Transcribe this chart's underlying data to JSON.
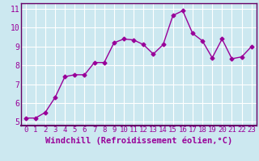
{
  "x": [
    0,
    1,
    2,
    3,
    4,
    5,
    6,
    7,
    8,
    9,
    10,
    11,
    12,
    13,
    14,
    15,
    16,
    17,
    18,
    19,
    20,
    21,
    22,
    23
  ],
  "y": [
    5.2,
    5.2,
    5.5,
    6.3,
    7.4,
    7.5,
    7.5,
    8.15,
    8.15,
    9.2,
    9.4,
    9.35,
    9.1,
    8.6,
    9.1,
    10.65,
    10.9,
    9.7,
    9.3,
    8.4,
    9.4,
    8.35,
    8.45,
    9.0
  ],
  "line_color": "#990099",
  "marker": "D",
  "marker_size": 2.5,
  "bg_color": "#cce8f0",
  "grid_color": "#ffffff",
  "xlabel": "Windchill (Refroidissement éolien,°C)",
  "xlabel_color": "#990099",
  "tick_color": "#990099",
  "separator_color": "#660066",
  "ylim": [
    4.8,
    11.3
  ],
  "xlim": [
    -0.5,
    23.5
  ],
  "yticks": [
    5,
    6,
    7,
    8,
    9,
    10,
    11
  ],
  "xtick_labels": [
    "0",
    "1",
    "2",
    "3",
    "4",
    "5",
    "6",
    "7",
    "8",
    "9",
    "10",
    "11",
    "12",
    "13",
    "14",
    "15",
    "16",
    "17",
    "18",
    "19",
    "20",
    "21",
    "22",
    "23"
  ],
  "linewidth": 1.0,
  "font_size": 6.5,
  "xlabel_fontsize": 7.5
}
